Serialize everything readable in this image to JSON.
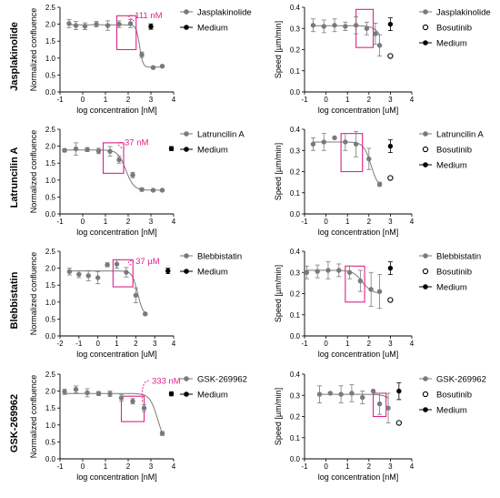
{
  "colors": {
    "series": "#7a7a7a",
    "medium": "#000000",
    "highlight": "#e0218a"
  },
  "rows": [
    {
      "label": "Jasplakinolide"
    },
    {
      "label": "Latruncilin  A"
    },
    {
      "label": "Blebbistatin"
    },
    {
      "label": "GSK-269962"
    }
  ],
  "chart_data": [
    {
      "type": "scatter",
      "row": 0,
      "side": "left",
      "xlabel": "log concentration [nM]",
      "ylabel": "Normalized confluence",
      "xlim": [
        -1,
        4
      ],
      "ylim": [
        0,
        2.5
      ],
      "xticks": [
        -1,
        0,
        1,
        2,
        3,
        4
      ],
      "yticks": [
        0.0,
        0.5,
        1.0,
        1.5,
        2.0,
        2.5
      ],
      "grid": false,
      "legend_position": "top-right",
      "series": [
        {
          "name": "Jasplakinolide",
          "style": "gray-filled",
          "x": [
            -0.6,
            -0.3,
            0.1,
            0.6,
            1.1,
            1.6,
            2.1,
            2.6,
            3.1,
            3.5
          ],
          "y": [
            2.02,
            1.96,
            1.94,
            2.0,
            1.96,
            2.0,
            2.02,
            1.1,
            0.72,
            0.76
          ],
          "err": [
            0.12,
            0.12,
            0.1,
            0.08,
            0.14,
            0.1,
            0.12,
            0.08,
            0.03,
            0.03
          ]
        },
        {
          "name": "Medium",
          "style": "black-filled",
          "x": [
            3.0
          ],
          "y": [
            1.93
          ],
          "err": [
            0.08
          ]
        }
      ],
      "fit": {
        "top": 1.98,
        "bottom": 0.73,
        "ec50_log": 2.5,
        "slope": -6
      },
      "highlight_box": {
        "x": [
          1.5,
          2.35
        ],
        "y": [
          1.25,
          2.25
        ]
      },
      "annotation": {
        "text": "111 nM",
        "x": 2.05,
        "y": 2.2
      }
    },
    {
      "type": "scatter",
      "row": 0,
      "side": "right",
      "xlabel": "log concentration [uM]",
      "ylabel": "Speed [µm/min]",
      "xlim": [
        -1,
        4
      ],
      "ylim": [
        0,
        0.4
      ],
      "xticks": [
        -1,
        0,
        1,
        2,
        3,
        4
      ],
      "yticks": [
        0.0,
        0.1,
        0.2,
        0.3,
        0.4
      ],
      "grid": false,
      "legend_position": "top-right",
      "series": [
        {
          "name": "Jasplakinolide",
          "style": "gray-filled",
          "x": [
            -0.6,
            -0.1,
            0.4,
            0.9,
            1.4,
            1.9,
            2.3,
            2.5
          ],
          "y": [
            0.315,
            0.31,
            0.315,
            0.31,
            0.315,
            0.3,
            0.275,
            0.22
          ],
          "err": [
            0.03,
            0.03,
            0.03,
            0.02,
            0.04,
            0.03,
            0.05,
            0.05
          ]
        },
        {
          "name": "Bosutinib",
          "style": "open",
          "x": [
            3.0
          ],
          "y": [
            0.17
          ],
          "err": [
            0
          ]
        },
        {
          "name": "Medium",
          "style": "black-filled",
          "x": [
            3.0
          ],
          "y": [
            0.32
          ],
          "err": [
            0.03
          ]
        }
      ],
      "fit": {
        "top": 0.313,
        "bottom": 0.1,
        "ec50_log": 2.8,
        "slope": -2
      },
      "highlight_box": {
        "x": [
          1.4,
          2.2
        ],
        "y": [
          0.21,
          0.39
        ]
      }
    },
    {
      "type": "scatter",
      "row": 1,
      "side": "left",
      "xlabel": "log concentration [nM]",
      "ylabel": "Normalized confluence",
      "xlim": [
        -1,
        4
      ],
      "ylim": [
        0,
        2.5
      ],
      "xticks": [
        -1,
        0,
        1,
        2,
        3,
        4
      ],
      "yticks": [
        0.0,
        0.5,
        1.0,
        1.5,
        2.0,
        2.5
      ],
      "grid": false,
      "legend_position": "top-right",
      "series": [
        {
          "name": "Latruncilin A",
          "style": "gray-filled",
          "x": [
            -0.8,
            -0.3,
            0.2,
            0.7,
            1.2,
            1.6,
            2.2,
            2.6,
            3.1,
            3.5
          ],
          "y": [
            1.88,
            1.92,
            1.9,
            1.86,
            1.85,
            1.6,
            1.15,
            0.72,
            0.7,
            0.7
          ],
          "err": [
            0.05,
            0.18,
            0.06,
            0.08,
            0.14,
            0.1,
            0.08,
            0.05,
            0.03,
            0.03
          ]
        },
        {
          "name": "Medium",
          "style": "black-filled",
          "x": [
            3.9
          ],
          "y": [
            1.93
          ],
          "err": [
            0.06
          ]
        }
      ],
      "fit": {
        "top": 1.89,
        "bottom": 0.7,
        "ec50_log": 1.9,
        "slope": -2.5
      },
      "highlight_box": {
        "x": [
          0.9,
          1.8
        ],
        "y": [
          1.2,
          2.1
        ]
      },
      "annotation": {
        "text": "37 nM",
        "x": 1.6,
        "y": 2.05
      }
    },
    {
      "type": "scatter",
      "row": 1,
      "side": "right",
      "xlabel": "log concentration [nM]",
      "ylabel": "Speed [µm/min]",
      "xlim": [
        -1,
        4
      ],
      "ylim": [
        0,
        0.4
      ],
      "xticks": [
        -1,
        0,
        1,
        2,
        3,
        4
      ],
      "yticks": [
        0.0,
        0.1,
        0.2,
        0.3,
        0.4
      ],
      "grid": false,
      "legend_position": "top-right",
      "series": [
        {
          "name": "Latruncilin A",
          "style": "gray-filled",
          "x": [
            -0.6,
            -0.1,
            0.4,
            0.9,
            1.4,
            2.0,
            2.5
          ],
          "y": [
            0.33,
            0.34,
            0.36,
            0.34,
            0.33,
            0.26,
            0.14
          ],
          "err": [
            0.03,
            0.04,
            0.0,
            0.04,
            0.06,
            0.05,
            0.01
          ]
        },
        {
          "name": "Bosutinib",
          "style": "open",
          "x": [
            3.0
          ],
          "y": [
            0.17
          ],
          "err": [
            0
          ]
        },
        {
          "name": "Medium",
          "style": "black-filled",
          "x": [
            3.0
          ],
          "y": [
            0.32
          ],
          "err": [
            0.03
          ]
        }
      ],
      "fit": {
        "top": 0.34,
        "bottom": 0.12,
        "ec50_log": 2.1,
        "slope": -2.5
      },
      "highlight_box": {
        "x": [
          0.7,
          1.7
        ],
        "y": [
          0.2,
          0.38
        ]
      }
    },
    {
      "type": "scatter",
      "row": 2,
      "side": "left",
      "xlabel": "log concentration [uM]",
      "ylabel": "Normalized confluence",
      "xlim": [
        -2,
        4
      ],
      "ylim": [
        0,
        2.5
      ],
      "xticks": [
        -2,
        -1,
        0,
        1,
        2,
        3,
        4
      ],
      "yticks": [
        0.0,
        0.5,
        1.0,
        1.5,
        2.0,
        2.5
      ],
      "grid": false,
      "legend_position": "top-right",
      "series": [
        {
          "name": "Blebbistatin",
          "style": "gray-filled",
          "x": [
            -1.5,
            -1.0,
            -0.5,
            0.0,
            0.5,
            1.0,
            1.5,
            2.0,
            2.5
          ],
          "y": [
            1.9,
            1.82,
            1.78,
            1.72,
            2.1,
            2.12,
            1.88,
            1.2,
            0.65
          ],
          "err": [
            0.1,
            0.1,
            0.15,
            0.18,
            0.06,
            0.12,
            0.14,
            0.22,
            0.03
          ]
        },
        {
          "name": "Medium",
          "style": "black-filled",
          "x": [
            3.7
          ],
          "y": [
            1.92
          ],
          "err": [
            0.08
          ]
        }
      ],
      "fit": {
        "top": 1.92,
        "bottom": 0.6,
        "ec50_log": 2.1,
        "slope": -3
      },
      "highlight_box": {
        "x": [
          0.8,
          1.85
        ],
        "y": [
          1.45,
          2.25
        ]
      },
      "annotation": {
        "text": "37 µM",
        "x": 1.7,
        "y": 2.15
      }
    },
    {
      "type": "scatter",
      "row": 2,
      "side": "right",
      "xlabel": "log concentration [uM]",
      "ylabel": "Speed [µm/min]",
      "xlim": [
        -1,
        4
      ],
      "ylim": [
        0,
        0.4
      ],
      "xticks": [
        -1,
        0,
        1,
        2,
        3,
        4
      ],
      "yticks": [
        0.0,
        0.1,
        0.2,
        0.3,
        0.4
      ],
      "grid": false,
      "legend_position": "top-right",
      "series": [
        {
          "name": "Blebbistatin",
          "style": "gray-filled",
          "x": [
            -0.9,
            -0.4,
            0.1,
            0.6,
            1.1,
            1.6,
            2.1,
            2.5
          ],
          "y": [
            0.3,
            0.305,
            0.31,
            0.31,
            0.3,
            0.26,
            0.22,
            0.21
          ],
          "err": [
            0.03,
            0.03,
            0.04,
            0.03,
            0.03,
            0.05,
            0.08,
            0.08
          ]
        },
        {
          "name": "Bosutinib",
          "style": "open",
          "x": [
            3.0
          ],
          "y": [
            0.17
          ],
          "err": [
            0
          ]
        },
        {
          "name": "Medium",
          "style": "black-filled",
          "x": [
            3.0
          ],
          "y": [
            0.32
          ],
          "err": [
            0.03
          ]
        }
      ],
      "fit": {
        "top": 0.31,
        "bottom": 0.2,
        "ec50_log": 1.7,
        "slope": -2
      },
      "highlight_box": {
        "x": [
          0.9,
          1.8
        ],
        "y": [
          0.16,
          0.33
        ]
      }
    },
    {
      "type": "scatter",
      "row": 3,
      "side": "left",
      "xlabel": "log concentration [nM]",
      "ylabel": "Normalized confluence",
      "xlim": [
        -1,
        4
      ],
      "ylim": [
        0,
        2.5
      ],
      "xticks": [
        -1,
        0,
        1,
        2,
        3,
        4
      ],
      "yticks": [
        0.0,
        0.5,
        1.0,
        1.5,
        2.0,
        2.5
      ],
      "grid": false,
      "legend_position": "top-right",
      "series": [
        {
          "name": "GSK-269962",
          "style": "gray-filled",
          "x": [
            -0.8,
            -0.3,
            0.2,
            0.7,
            1.2,
            1.7,
            2.2,
            2.7,
            3.5
          ],
          "y": [
            1.98,
            2.05,
            1.95,
            1.93,
            1.92,
            1.8,
            1.7,
            1.5,
            0.75
          ],
          "err": [
            0.08,
            0.1,
            0.12,
            0.06,
            0.08,
            0.1,
            0.08,
            0.1,
            0.06
          ]
        },
        {
          "name": "Medium",
          "style": "black-filled",
          "x": [
            3.9
          ],
          "y": [
            1.92
          ],
          "err": [
            0.06
          ]
        }
      ],
      "fit": {
        "top": 1.93,
        "bottom": 0.4,
        "ec50_log": 3.3,
        "slope": -2.5
      },
      "highlight_box": {
        "x": [
          1.7,
          2.7
        ],
        "y": [
          1.1,
          1.85
        ]
      },
      "annotation": {
        "text": "333 nM",
        "x": 2.8,
        "y": 2.25
      }
    },
    {
      "type": "scatter",
      "row": 3,
      "side": "right",
      "xlabel": "log concentration [nM]",
      "ylabel": "Speed [µm/min]",
      "xlim": [
        -1,
        4
      ],
      "ylim": [
        0,
        0.4
      ],
      "xticks": [
        -1,
        0,
        1,
        2,
        3,
        4
      ],
      "yticks": [
        0.0,
        0.1,
        0.2,
        0.3,
        0.4
      ],
      "grid": false,
      "legend_position": "top-right",
      "series": [
        {
          "name": "GSK-269962",
          "style": "gray-filled",
          "x": [
            -0.3,
            0.2,
            0.7,
            1.2,
            1.7,
            2.2,
            2.5,
            2.9
          ],
          "y": [
            0.305,
            0.31,
            0.305,
            0.31,
            0.29,
            0.32,
            0.26,
            0.24
          ],
          "err": [
            0.04,
            0.0,
            0.04,
            0.04,
            0.03,
            0.0,
            0.05,
            0.07
          ]
        },
        {
          "name": "Bosutinib",
          "style": "open",
          "x": [
            3.4
          ],
          "y": [
            0.17
          ],
          "err": [
            0
          ]
        },
        {
          "name": "Medium",
          "style": "black-filled",
          "x": [
            3.4
          ],
          "y": [
            0.32
          ],
          "err": [
            0.04
          ]
        }
      ],
      "fit": {
        "top": 0.305,
        "bottom": 0.1,
        "ec50_log": 3.4,
        "slope": -2
      },
      "highlight_box": {
        "x": [
          2.2,
          2.8
        ],
        "y": [
          0.2,
          0.31
        ]
      }
    }
  ]
}
